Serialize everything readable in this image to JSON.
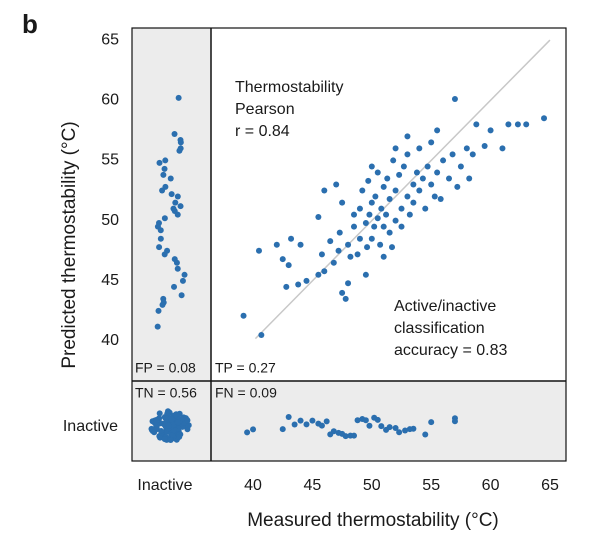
{
  "chart_data": {
    "type": "scatter",
    "panel_label": "b",
    "xlabel": "Measured thermostability (°C)",
    "ylabel": "Predicted thermostability (°C)",
    "x_category": "Inactive",
    "y_category": "Inactive",
    "annotation_pearson": [
      "Thermostability",
      "Pearson",
      "r = 0.84"
    ],
    "annotation_accuracy": [
      "Active/inactive",
      "classification",
      "accuracy = 0.83"
    ],
    "quadrant_labels": {
      "fp": "FP = 0.08",
      "tp": "TP = 0.27",
      "tn": "TN = 0.56",
      "fn": "FN = 0.09"
    },
    "xlim": [
      36.46,
      66.35
    ],
    "ylim": [
      36.68,
      66.0
    ],
    "xticks": [
      40,
      45,
      50,
      55,
      60,
      65
    ],
    "yticks": [
      40,
      45,
      50,
      55,
      60,
      65
    ],
    "identity_line": [
      40.2,
      65
    ],
    "series": [
      {
        "color": "#2b6faf",
        "x": [
          39.2,
          40.7,
          40.5,
          42.5,
          42.8,
          43.0,
          43.2,
          43.8,
          44.5,
          45.5,
          45.8,
          46.0,
          46.5,
          46.8,
          47.2,
          47.3,
          47.5,
          47.5,
          47.8,
          48.0,
          48.2,
          48.5,
          48.5,
          48.8,
          49.0,
          49.0,
          49.2,
          49.5,
          49.6,
          49.7,
          49.8,
          50.0,
          50.0,
          50.2,
          50.3,
          50.5,
          50.5,
          50.7,
          50.8,
          51.0,
          51.0,
          51.2,
          51.3,
          51.5,
          51.5,
          51.7,
          51.8,
          52.0,
          52.0,
          52.3,
          52.5,
          52.5,
          52.7,
          53.0,
          53.0,
          53.2,
          53.5,
          53.5,
          53.8,
          54.0,
          54.0,
          54.3,
          54.5,
          54.7,
          55.0,
          55.0,
          55.3,
          55.5,
          55.8,
          56.0,
          56.5,
          56.8,
          57.0,
          57.2,
          57.5,
          58.0,
          58.2,
          58.5,
          58.8,
          59.5,
          60.0,
          61.0,
          61.5,
          62.3,
          63.0,
          64.5,
          46.0,
          44.0,
          47.0,
          45.5,
          42.0,
          51.0,
          49.5,
          53.0,
          55.5,
          48.0,
          50.0,
          52.0
        ],
        "values": [
          42.1,
          40.5,
          47.5,
          46.8,
          44.5,
          46.3,
          48.5,
          44.7,
          45.0,
          45.5,
          47.2,
          45.8,
          48.3,
          46.5,
          47.5,
          49.0,
          51.5,
          44.0,
          43.5,
          48.0,
          47.0,
          49.5,
          50.5,
          47.2,
          48.5,
          51.0,
          52.5,
          49.8,
          47.8,
          53.3,
          50.5,
          48.5,
          51.5,
          49.5,
          52.0,
          50.2,
          54.0,
          48.0,
          51.0,
          49.5,
          52.8,
          50.5,
          53.5,
          49.0,
          51.8,
          47.8,
          55.0,
          52.5,
          50.0,
          53.8,
          51.0,
          49.5,
          54.5,
          52.0,
          55.5,
          50.5,
          53.0,
          51.5,
          54.0,
          52.5,
          56.0,
          53.5,
          51.0,
          54.5,
          53.0,
          56.5,
          52.0,
          54.0,
          51.8,
          55.0,
          53.5,
          55.5,
          60.1,
          52.8,
          54.5,
          56.0,
          53.5,
          55.5,
          58.0,
          56.2,
          57.5,
          56.0,
          58.0,
          58.0,
          58.0,
          58.5,
          52.5,
          48.0,
          53.0,
          50.3,
          48.0,
          47.0,
          45.5,
          57.0,
          57.5,
          44.8,
          54.5,
          56.0
        ]
      },
      {
        "color": "#2b6faf",
        "values": [
          60.2,
          57.2,
          56.7,
          56.5,
          56.0,
          55.8,
          55.0,
          54.8,
          54.3,
          53.8,
          53.5,
          52.8,
          52.5,
          52.2,
          52.0,
          51.5,
          51.2,
          51.0,
          50.8,
          50.5,
          50.2,
          49.8,
          49.5,
          49.2,
          48.5,
          47.8,
          47.5,
          47.2,
          46.8,
          46.5,
          46.0,
          45.5,
          45.0,
          44.5,
          43.8,
          43.5,
          43.2,
          43.0,
          42.5,
          41.2
        ]
      },
      {
        "color": "#2b6faf",
        "x": [
          39.5,
          40.0,
          42.5,
          43.0,
          43.5,
          44.0,
          44.5,
          45.0,
          45.5,
          45.8,
          46.2,
          46.5,
          46.8,
          47.2,
          47.5,
          47.8,
          48.2,
          48.5,
          48.8,
          49.2,
          49.5,
          49.8,
          50.2,
          50.5,
          50.8,
          51.2,
          51.5,
          52.0,
          52.3,
          52.8,
          53.2,
          53.5,
          54.5,
          55.0,
          57.0,
          57.0
        ]
      }
    ]
  }
}
